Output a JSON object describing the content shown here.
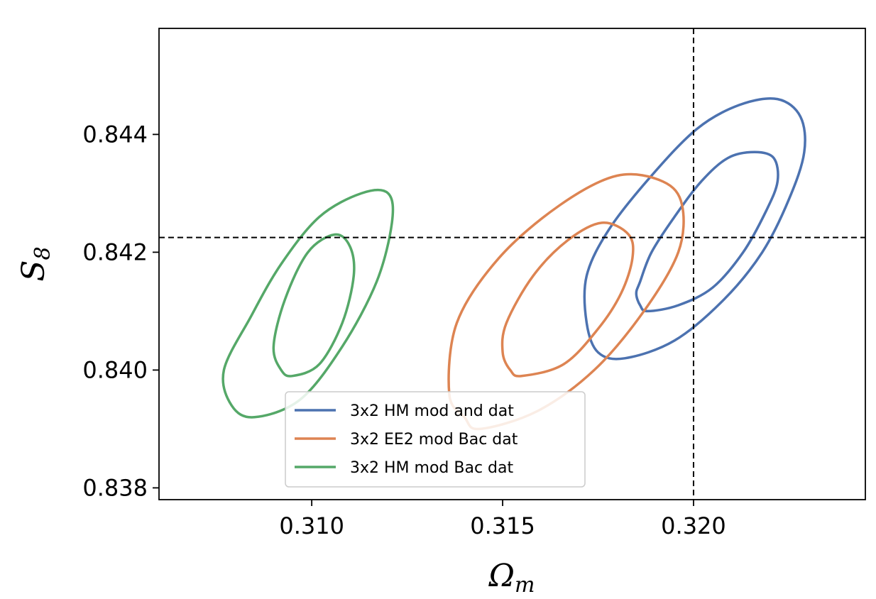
{
  "chart_data": {
    "type": "contour",
    "xlabel": {
      "symbol": "Ω",
      "subscript": "m"
    },
    "ylabel": {
      "symbol": "S",
      "subscript": "8"
    },
    "xlim": [
      0.306,
      0.3245
    ],
    "ylim": [
      0.8378,
      0.8458
    ],
    "x_ticks": [
      0.31,
      0.315,
      0.32
    ],
    "x_tick_labels": [
      "0.310",
      "0.315",
      "0.320"
    ],
    "y_ticks": [
      0.838,
      0.84,
      0.842,
      0.844
    ],
    "y_tick_labels": [
      "0.838",
      "0.840",
      "0.842",
      "0.844"
    ],
    "reference_lines": {
      "x": 0.32,
      "y": 0.84225
    },
    "grid": false,
    "legend_position": "lower-center",
    "series": [
      {
        "name": "3x2 HM mod and dat",
        "color": "#4c72b0",
        "contours": [
          [
            [
              0.3188,
              0.841
            ],
            [
              0.3196,
              0.8411
            ],
            [
              0.3205,
              0.8414
            ],
            [
              0.3213,
              0.842
            ],
            [
              0.3219,
              0.8427
            ],
            [
              0.3222,
              0.8432
            ],
            [
              0.3221,
              0.8436
            ],
            [
              0.3216,
              0.8437
            ],
            [
              0.3209,
              0.8436
            ],
            [
              0.3202,
              0.8432
            ],
            [
              0.3195,
              0.8426
            ],
            [
              0.3189,
              0.842
            ],
            [
              0.3186,
              0.8415
            ],
            [
              0.3185,
              0.8413
            ],
            [
              0.3186,
              0.8411
            ]
          ],
          [
            [
              0.3182,
              0.8402
            ],
            [
              0.3195,
              0.8405
            ],
            [
              0.3208,
              0.8412
            ],
            [
              0.3218,
              0.842
            ],
            [
              0.3225,
              0.8429
            ],
            [
              0.3229,
              0.8437
            ],
            [
              0.3228,
              0.8443
            ],
            [
              0.3222,
              0.8446
            ],
            [
              0.3212,
              0.8445
            ],
            [
              0.3201,
              0.8441
            ],
            [
              0.3189,
              0.8433
            ],
            [
              0.3178,
              0.8424
            ],
            [
              0.3172,
              0.8416
            ],
            [
              0.3172,
              0.8408
            ],
            [
              0.3175,
              0.8403
            ]
          ]
        ]
      },
      {
        "name": "3x2 EE2 mod Bac dat",
        "color": "#dd8452",
        "contours": [
          [
            [
              0.3155,
              0.8399
            ],
            [
              0.3166,
              0.8401
            ],
            [
              0.3175,
              0.8407
            ],
            [
              0.3181,
              0.8413
            ],
            [
              0.3184,
              0.8419
            ],
            [
              0.3183,
              0.8423
            ],
            [
              0.3176,
              0.8425
            ],
            [
              0.3167,
              0.8422
            ],
            [
              0.3158,
              0.8416
            ],
            [
              0.3151,
              0.8408
            ],
            [
              0.315,
              0.8403
            ],
            [
              0.3152,
              0.84
            ]
          ],
          [
            [
              0.3144,
              0.839
            ],
            [
              0.3159,
              0.8393
            ],
            [
              0.3174,
              0.84
            ],
            [
              0.3187,
              0.841
            ],
            [
              0.3196,
              0.842
            ],
            [
              0.3197,
              0.8428
            ],
            [
              0.3192,
              0.8432
            ],
            [
              0.318,
              0.8433
            ],
            [
              0.3165,
              0.8428
            ],
            [
              0.3149,
              0.8419
            ],
            [
              0.3138,
              0.8408
            ],
            [
              0.3136,
              0.8396
            ],
            [
              0.314,
              0.8392
            ]
          ]
        ]
      },
      {
        "name": "3x2 HM mod Bac dat",
        "color": "#55a868",
        "contours": [
          [
            [
              0.3095,
              0.8399
            ],
            [
              0.3102,
              0.8401
            ],
            [
              0.3108,
              0.8408
            ],
            [
              0.3111,
              0.8416
            ],
            [
              0.311,
              0.8421
            ],
            [
              0.3106,
              0.8423
            ],
            [
              0.3099,
              0.842
            ],
            [
              0.3093,
              0.8412
            ],
            [
              0.309,
              0.8404
            ],
            [
              0.3092,
              0.84
            ]
          ],
          [
            [
              0.3085,
              0.8392
            ],
            [
              0.3097,
              0.8395
            ],
            [
              0.3108,
              0.8404
            ],
            [
              0.3117,
              0.8415
            ],
            [
              0.3121,
              0.8425
            ],
            [
              0.312,
              0.843
            ],
            [
              0.3113,
              0.843
            ],
            [
              0.3102,
              0.8426
            ],
            [
              0.3092,
              0.8418
            ],
            [
              0.3084,
              0.8409
            ],
            [
              0.3077,
              0.84
            ],
            [
              0.3079,
              0.8394
            ]
          ]
        ]
      }
    ]
  }
}
